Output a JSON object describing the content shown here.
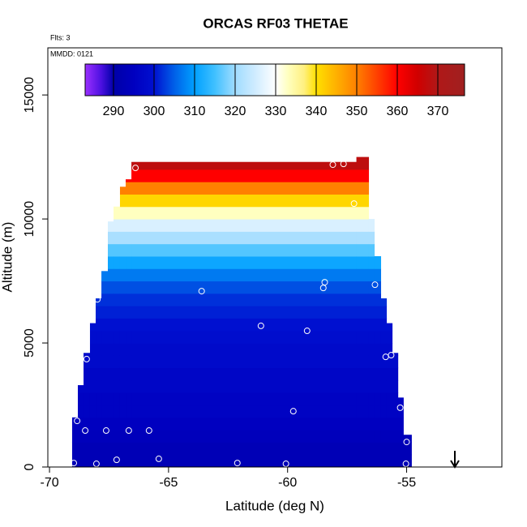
{
  "chart_data": {
    "type": "heatmap",
    "title": "ORCAS RF03 THETAE",
    "flights_note": "Flts: 3",
    "date_note": "MMDD: 0121",
    "x_label": "Latitude (deg N)",
    "y_label": "Altitude (m)",
    "xlim": [
      -70.07,
      -51.0
    ],
    "xticks": [
      -70,
      -65,
      -60,
      -55
    ],
    "ylim": [
      0,
      16900
    ],
    "yticks": [
      0,
      5000,
      10000,
      15000
    ],
    "column_edges": [
      -69.05,
      -68.81,
      -68.57,
      -68.3,
      -68.06,
      -67.82,
      -67.55,
      -67.31,
      -67.04,
      -66.8,
      -66.56,
      -57.11,
      -56.87,
      -56.6,
      -56.36,
      -56.09,
      -55.85,
      -55.61,
      -55.37,
      -55.14,
      -54.8
    ],
    "column_tops": [
      2000,
      3300,
      4600,
      5800,
      6800,
      7900,
      9900,
      10500,
      11300,
      11600,
      12300,
      12500,
      12500,
      10000,
      8500,
      6800,
      5800,
      4600,
      2800,
      1300
    ],
    "level_step": 500,
    "level_bottoms": [
      0,
      500,
      1000,
      1500,
      2000,
      2500,
      3000,
      3500,
      4000,
      4500,
      5000,
      5500,
      6000,
      6500,
      7000,
      7500,
      8000,
      8500,
      9000,
      9500,
      10000,
      10500,
      11000,
      11500,
      12000
    ],
    "thetae": [
      293,
      293,
      294,
      295,
      296,
      296,
      297,
      297,
      298,
      298,
      299,
      300,
      301,
      302,
      304,
      307,
      311,
      316,
      321,
      326,
      333,
      341,
      350,
      360,
      368
    ],
    "points_x": [
      -66.39,
      -58.1,
      -57.65,
      -57.21,
      -63.61,
      -58.44,
      -58.5,
      -56.33,
      -67.99,
      -61.12,
      -59.18,
      -68.44,
      -55.88,
      -55.65,
      -59.76,
      -55.27,
      -68.84,
      -68.5,
      -67.62,
      -66.67,
      -65.82,
      -55.0,
      -68.98,
      -68.03,
      -67.18,
      -65.41,
      -62.11,
      -60.07,
      -55.03
    ],
    "points_y": [
      12060,
      12190,
      12220,
      10620,
      7090,
      7450,
      7220,
      7350,
      6760,
      5690,
      5490,
      4350,
      4440,
      4510,
      2250,
      2390,
      1860,
      1470,
      1470,
      1470,
      1470,
      1010,
      160,
      130,
      290,
      330,
      160,
      130,
      130
    ],
    "point_color": "#ffffff",
    "colorbar_lim": [
      283,
      376.6
    ],
    "colorbar_ticks": [
      290,
      300,
      310,
      320,
      330,
      340,
      350,
      360,
      370
    ],
    "color_stops": [
      {
        "value": 283,
        "color": "#9b30ff"
      },
      {
        "value": 287,
        "color": "#4b10e0"
      },
      {
        "value": 290,
        "color": "#0000a8"
      },
      {
        "value": 295,
        "color": "#0000c0"
      },
      {
        "value": 300,
        "color": "#0010d0"
      },
      {
        "value": 305,
        "color": "#0060e8"
      },
      {
        "value": 310,
        "color": "#00a0ff"
      },
      {
        "value": 315,
        "color": "#40c0ff"
      },
      {
        "value": 320,
        "color": "#a0dcff"
      },
      {
        "value": 325,
        "color": "#d0ecff"
      },
      {
        "value": 330,
        "color": "#ffffff"
      },
      {
        "value": 333,
        "color": "#ffffc0"
      },
      {
        "value": 337,
        "color": "#fff080"
      },
      {
        "value": 340,
        "color": "#ffe000"
      },
      {
        "value": 345,
        "color": "#ffb000"
      },
      {
        "value": 350,
        "color": "#ff8000"
      },
      {
        "value": 355,
        "color": "#ff4000"
      },
      {
        "value": 360,
        "color": "#ff0000"
      },
      {
        "value": 365,
        "color": "#d00000"
      },
      {
        "value": 370,
        "color": "#b01818"
      },
      {
        "value": 376.6,
        "color": "#a02020"
      }
    ]
  }
}
